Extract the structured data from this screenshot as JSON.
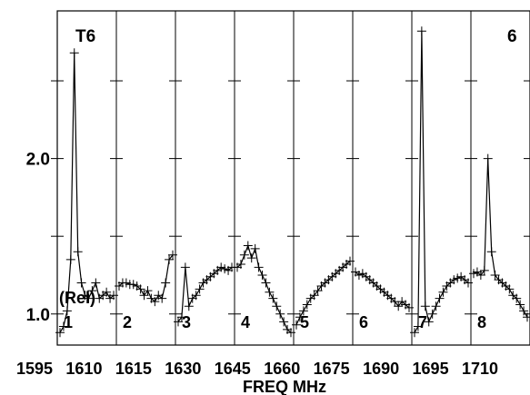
{
  "chart_data": {
    "type": "line",
    "title": "",
    "ylabel": "(Rel)",
    "xlabel": "FREQ MHz",
    "top_labels": {
      "left": "T6",
      "right": "6"
    },
    "ylim": [
      0.8,
      2.95
    ],
    "y_ticks": [
      {
        "value": 1.0,
        "label": "1.0"
      },
      {
        "value": 2.0,
        "label": "2.0"
      }
    ],
    "y_minor_ticks": [
      1.0,
      1.5,
      2.0,
      2.5
    ],
    "x_tick_labels": [
      "1595",
      "1610",
      "1615",
      "1630",
      "1645",
      "1660",
      "1675",
      "1690",
      "1695",
      "1710"
    ],
    "marker": "+",
    "line_color": "#000000",
    "grid": false,
    "panels": [
      {
        "number": "1",
        "x": [
          1595,
          1596,
          1597,
          1598,
          1599,
          1600,
          1601,
          1602,
          1603,
          1604,
          1605,
          1606,
          1607,
          1608,
          1609,
          1610
        ],
        "y": [
          0.88,
          0.92,
          1.02,
          1.35,
          2.68,
          1.4,
          1.2,
          1.12,
          1.1,
          1.15,
          1.2,
          1.1,
          1.12,
          1.14,
          1.1,
          1.12
        ]
      },
      {
        "number": "2",
        "x": [
          1610,
          1611,
          1612,
          1613,
          1614,
          1615,
          1616,
          1617,
          1618,
          1619,
          1620,
          1621,
          1622,
          1623,
          1624,
          1625
        ],
        "y": [
          1.18,
          1.2,
          1.2,
          1.19,
          1.19,
          1.18,
          1.16,
          1.12,
          1.15,
          1.1,
          1.08,
          1.12,
          1.1,
          1.2,
          1.35,
          1.38
        ]
      },
      {
        "number": "3",
        "x": [
          1625,
          1626,
          1627,
          1628,
          1629,
          1630,
          1631,
          1632,
          1633,
          1634,
          1635,
          1636,
          1637,
          1638,
          1639,
          1640
        ],
        "y": [
          0.95,
          0.98,
          1.3,
          1.05,
          1.1,
          1.12,
          1.16,
          1.2,
          1.22,
          1.24,
          1.26,
          1.28,
          1.3,
          1.29,
          1.28,
          1.3
        ]
      },
      {
        "number": "4",
        "x": [
          1640,
          1641,
          1642,
          1643,
          1644,
          1645,
          1646,
          1647,
          1648,
          1649,
          1650,
          1651,
          1652,
          1653,
          1654,
          1655
        ],
        "y": [
          1.3,
          1.32,
          1.38,
          1.44,
          1.36,
          1.42,
          1.3,
          1.25,
          1.2,
          1.14,
          1.1,
          1.05,
          1.0,
          0.95,
          0.9,
          0.88
        ]
      },
      {
        "number": "5",
        "x": [
          1655,
          1656,
          1657,
          1658,
          1659,
          1660,
          1661,
          1662,
          1663,
          1664,
          1665,
          1666,
          1667,
          1668,
          1669,
          1670
        ],
        "y": [
          0.93,
          0.98,
          1.02,
          1.06,
          1.1,
          1.12,
          1.15,
          1.18,
          1.2,
          1.22,
          1.24,
          1.26,
          1.28,
          1.3,
          1.32,
          1.34
        ]
      },
      {
        "number": "6",
        "x": [
          1670,
          1671,
          1672,
          1673,
          1674,
          1675,
          1676,
          1677,
          1678,
          1679,
          1680,
          1681,
          1682,
          1683,
          1684,
          1685
        ],
        "y": [
          1.27,
          1.25,
          1.26,
          1.24,
          1.22,
          1.2,
          1.18,
          1.16,
          1.14,
          1.12,
          1.1,
          1.08,
          1.05,
          1.08,
          1.06,
          1.04
        ]
      },
      {
        "number": "7",
        "x": [
          1685,
          1686,
          1687,
          1688,
          1689,
          1690,
          1691,
          1692,
          1693,
          1694,
          1695,
          1696,
          1697,
          1698,
          1699,
          1700
        ],
        "y": [
          0.88,
          0.92,
          2.82,
          1.05,
          0.95,
          1.0,
          1.05,
          1.1,
          1.14,
          1.18,
          1.2,
          1.22,
          1.23,
          1.24,
          1.22,
          1.2
        ]
      },
      {
        "number": "8",
        "x": [
          1700,
          1701,
          1702,
          1703,
          1704,
          1705,
          1706,
          1707,
          1708,
          1709,
          1710,
          1711,
          1712,
          1713,
          1714,
          1715
        ],
        "y": [
          1.26,
          1.27,
          1.25,
          1.28,
          2.0,
          1.4,
          1.25,
          1.22,
          1.2,
          1.18,
          1.16,
          1.12,
          1.1,
          1.06,
          1.02,
          0.98
        ]
      }
    ]
  }
}
